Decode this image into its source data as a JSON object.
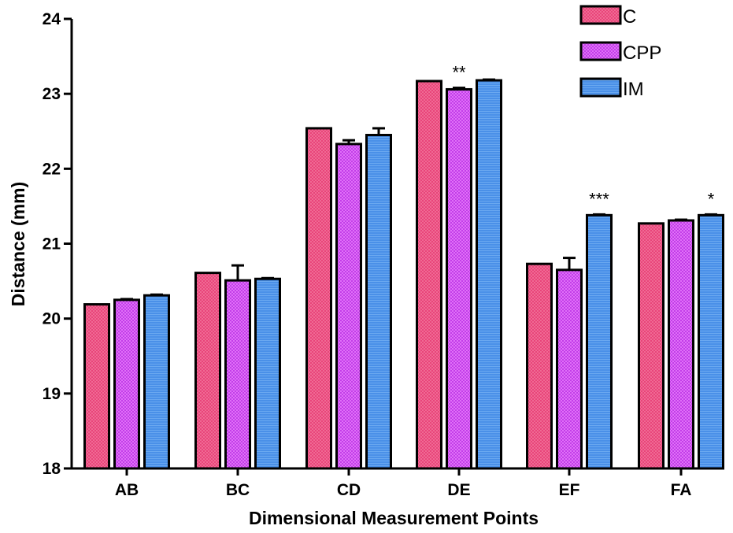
{
  "chart_data": {
    "type": "bar",
    "title": "",
    "xlabel": "Dimensional Measurement Points",
    "ylabel": "Distance (mm)",
    "ylim": [
      18,
      24
    ],
    "yticks": [
      "18",
      "19",
      "20",
      "21",
      "22",
      "23",
      "24"
    ],
    "categories": [
      "AB",
      "BC",
      "CD",
      "DE",
      "EF",
      "FA"
    ],
    "series": [
      {
        "name": "C",
        "color": "#e8457a",
        "values": [
          20.19,
          20.61,
          22.54,
          23.17,
          20.73,
          21.27
        ],
        "errors": [
          0.0,
          0.0,
          0.0,
          0.0,
          0.0,
          0.0
        ]
      },
      {
        "name": "CPP",
        "color": "#cc44ee",
        "values": [
          20.25,
          20.51,
          22.33,
          23.06,
          20.65,
          21.31
        ],
        "errors": [
          0.01,
          0.2,
          0.05,
          0.02,
          0.16,
          0.01
        ]
      },
      {
        "name": "IM",
        "color": "#4a90e8",
        "values": [
          20.31,
          20.53,
          22.45,
          23.18,
          21.38,
          21.38
        ],
        "errors": [
          0.01,
          0.01,
          0.09,
          0.01,
          0.01,
          0.01
        ]
      }
    ],
    "annotations": [
      {
        "category": "DE",
        "series": "CPP",
        "text": "**"
      },
      {
        "category": "EF",
        "series": "IM",
        "text": "***"
      },
      {
        "category": "FA",
        "series": "IM",
        "text": "*"
      }
    ],
    "legend_position": "top-right",
    "grid": false
  }
}
